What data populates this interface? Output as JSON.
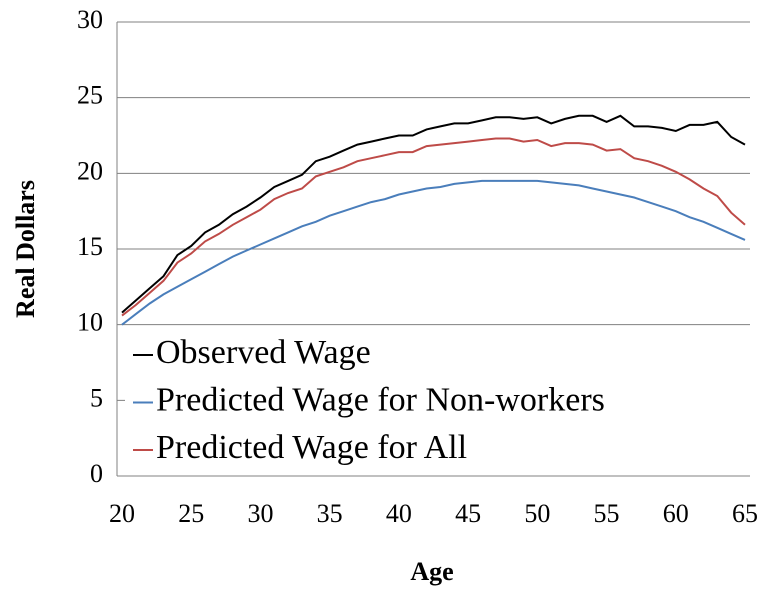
{
  "chart_data": {
    "type": "line",
    "xlabel": "Age",
    "ylabel": "Real Dollars",
    "x": [
      20,
      21,
      22,
      23,
      24,
      25,
      26,
      27,
      28,
      29,
      30,
      31,
      32,
      33,
      34,
      35,
      36,
      37,
      38,
      39,
      40,
      41,
      42,
      43,
      44,
      45,
      46,
      47,
      48,
      49,
      50,
      51,
      52,
      53,
      54,
      55,
      56,
      57,
      58,
      59,
      60,
      61,
      62,
      63,
      64,
      65
    ],
    "series": [
      {
        "name": "Observed Wage",
        "color": "#000000",
        "values": [
          10.8,
          11.6,
          12.4,
          13.2,
          14.6,
          15.2,
          16.1,
          16.6,
          17.3,
          17.8,
          18.4,
          19.1,
          19.5,
          19.9,
          20.8,
          21.1,
          21.5,
          21.9,
          22.1,
          22.3,
          22.5,
          22.5,
          22.9,
          23.1,
          23.3,
          23.3,
          23.5,
          23.7,
          23.7,
          23.6,
          23.7,
          23.3,
          23.6,
          23.8,
          23.8,
          23.4,
          23.8,
          23.1,
          23.1,
          23.0,
          22.8,
          23.2,
          23.2,
          23.4,
          22.4,
          21.9
        ]
      },
      {
        "name": "Predicted Wage for Non-workers",
        "color": "#4a7ebb",
        "values": [
          10.0,
          10.7,
          11.4,
          12.0,
          12.5,
          13.0,
          13.5,
          14.0,
          14.5,
          14.9,
          15.3,
          15.7,
          16.1,
          16.5,
          16.8,
          17.2,
          17.5,
          17.8,
          18.1,
          18.3,
          18.6,
          18.8,
          19.0,
          19.1,
          19.3,
          19.4,
          19.5,
          19.5,
          19.5,
          19.5,
          19.5,
          19.4,
          19.3,
          19.2,
          19.0,
          18.8,
          18.6,
          18.4,
          18.1,
          17.8,
          17.5,
          17.1,
          16.8,
          16.4,
          16.0,
          15.6
        ]
      },
      {
        "name": "Predicted Wage for All",
        "color": "#be4b48",
        "values": [
          10.6,
          11.3,
          12.1,
          12.9,
          14.1,
          14.7,
          15.5,
          16.0,
          16.6,
          17.1,
          17.6,
          18.3,
          18.7,
          19.0,
          19.8,
          20.1,
          20.4,
          20.8,
          21.0,
          21.2,
          21.4,
          21.4,
          21.8,
          21.9,
          22.0,
          22.1,
          22.2,
          22.3,
          22.3,
          22.1,
          22.2,
          21.8,
          22.0,
          22.0,
          21.9,
          21.5,
          21.6,
          21.0,
          20.8,
          20.5,
          20.1,
          19.6,
          19.0,
          18.5,
          17.4,
          16.6
        ]
      }
    ],
    "xlim": [
      20,
      65
    ],
    "xticks": [
      20,
      25,
      30,
      35,
      40,
      45,
      50,
      55,
      60,
      65
    ],
    "ylim": [
      0,
      30
    ],
    "yticks": [
      0,
      5,
      10,
      15,
      20,
      25,
      30
    ],
    "grid": true
  }
}
